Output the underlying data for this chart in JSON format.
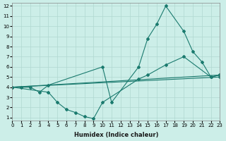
{
  "xlabel": "Humidex (Indice chaleur)",
  "bg_color": "#cceee8",
  "grid_color": "#b0d8d0",
  "line_color": "#1a7a6e",
  "xlim": [
    0,
    23
  ],
  "ylim": [
    0.7,
    12.3
  ],
  "xticks": [
    0,
    1,
    2,
    3,
    4,
    5,
    6,
    7,
    8,
    9,
    10,
    11,
    12,
    13,
    14,
    15,
    16,
    17,
    18,
    19,
    20,
    21,
    22,
    23
  ],
  "yticks": [
    1,
    2,
    3,
    4,
    5,
    6,
    7,
    8,
    9,
    10,
    11,
    12
  ],
  "s1x": [
    0,
    1,
    2,
    3,
    4,
    10,
    11,
    14,
    15,
    16,
    17,
    19,
    20,
    21,
    22,
    23
  ],
  "s1y": [
    4,
    4,
    4,
    3.5,
    4.2,
    6.0,
    2.5,
    6.0,
    8.8,
    10.2,
    12.0,
    9.5,
    7.5,
    6.5,
    5.0,
    5.2
  ],
  "s2x": [
    0,
    4,
    5,
    6,
    7,
    8,
    9,
    10,
    14,
    15,
    17,
    19,
    22,
    23
  ],
  "s2y": [
    4,
    3.5,
    2.5,
    1.8,
    1.5,
    1.1,
    0.9,
    2.5,
    4.8,
    5.2,
    6.2,
    7.0,
    5.0,
    5.2
  ],
  "s3x": [
    0,
    23
  ],
  "s3y": [
    4,
    5.2
  ],
  "s4x": [
    0,
    23
  ],
  "s4y": [
    4,
    5.0
  ]
}
